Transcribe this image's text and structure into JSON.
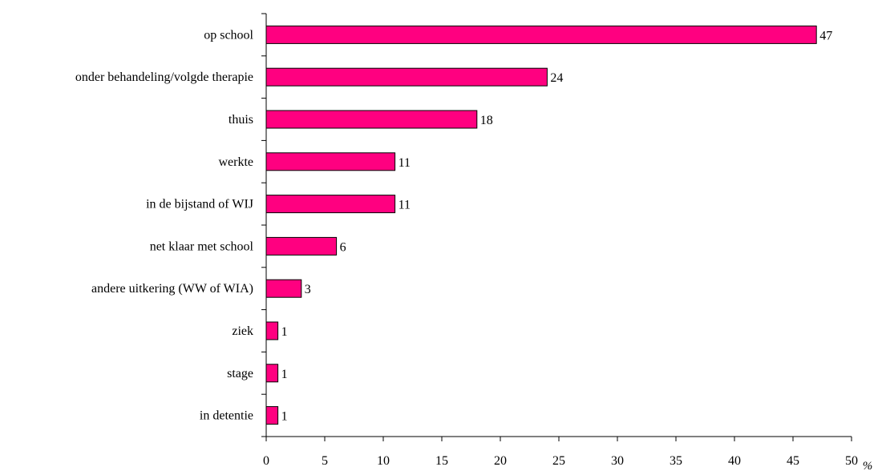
{
  "chart_data": {
    "type": "bar",
    "orientation": "horizontal",
    "title": "",
    "xlabel": "%",
    "ylabel": "",
    "xlim": [
      0,
      50
    ],
    "x_ticks": [
      "0",
      "5",
      "10",
      "15",
      "20",
      "25",
      "30",
      "35",
      "40",
      "45",
      "50"
    ],
    "categories": [
      "op school",
      "onder behandeling/volgde therapie",
      "thuis",
      "werkte",
      "in de bijstand of WIJ",
      "net klaar met school",
      "andere uitkering (WW of WIA)",
      "ziek",
      "stage",
      "in detentie"
    ],
    "values": [
      47,
      24,
      18,
      11,
      11,
      6,
      3,
      1,
      1,
      1
    ],
    "bar_color": "#ff0080",
    "grid": false,
    "legend": "none"
  }
}
